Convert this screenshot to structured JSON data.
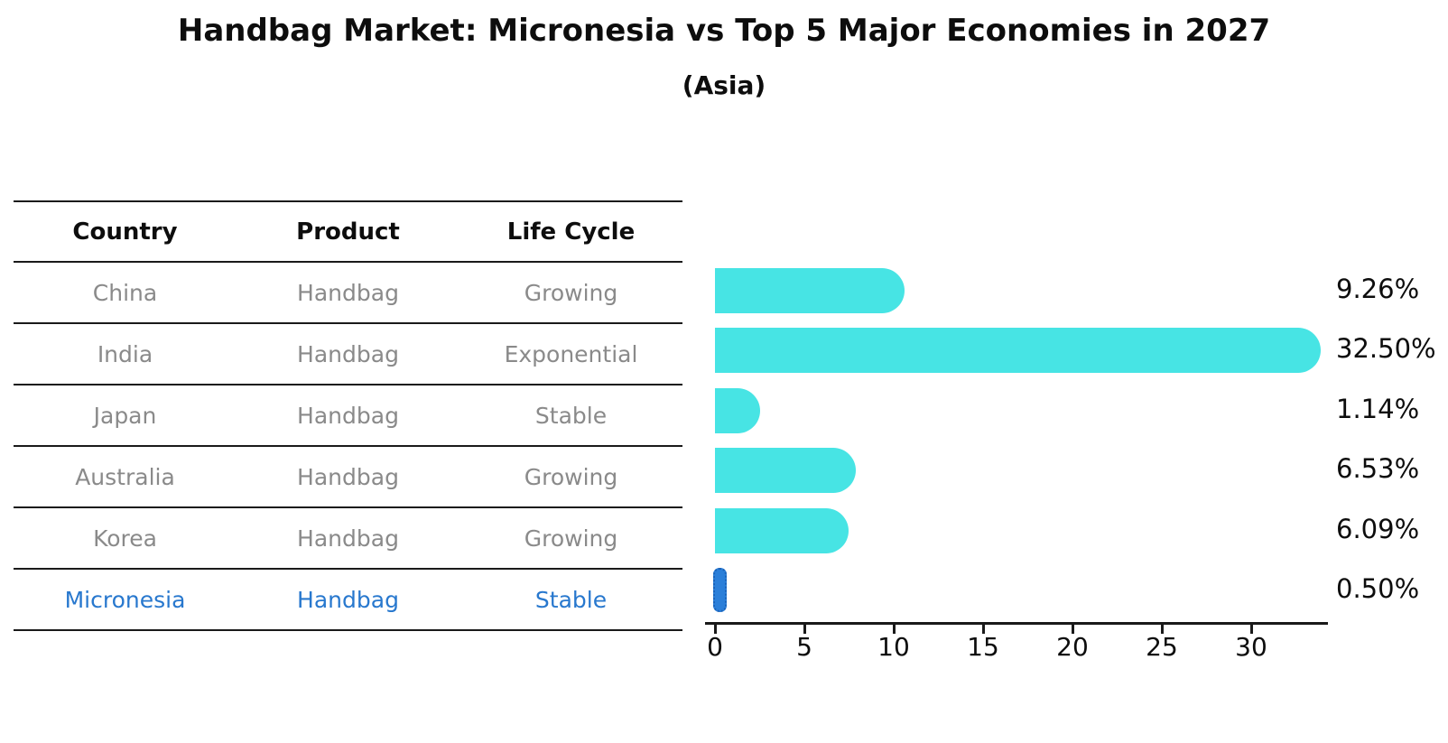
{
  "title": "Handbag Market: Micronesia vs Top 5 Major Economies in 2027",
  "subtitle": "(Asia)",
  "table": {
    "headers": [
      "Country",
      "Product",
      "Life Cycle"
    ],
    "rows": [
      {
        "country": "China",
        "product": "Handbag",
        "life_cycle": "Growing",
        "highlight": false
      },
      {
        "country": "India",
        "product": "Handbag",
        "life_cycle": "Exponential",
        "highlight": false
      },
      {
        "country": "Japan",
        "product": "Handbag",
        "life_cycle": "Stable",
        "highlight": false
      },
      {
        "country": "Australia",
        "product": "Handbag",
        "life_cycle": "Growing",
        "highlight": false
      },
      {
        "country": "Korea",
        "product": "Handbag",
        "life_cycle": "Growing",
        "highlight": false
      },
      {
        "country": "Micronesia",
        "product": "Handbag",
        "life_cycle": "Stable",
        "highlight": true
      }
    ]
  },
  "chart_data": {
    "type": "bar",
    "orientation": "horizontal",
    "title": "Handbag Market: Micronesia vs Top 5 Major Economies in 2027",
    "subtitle": "(Asia)",
    "categories": [
      "China",
      "India",
      "Japan",
      "Australia",
      "Korea",
      "Micronesia"
    ],
    "values": [
      9.26,
      32.5,
      1.14,
      6.53,
      6.09,
      0.5
    ],
    "bar_labels": [
      "9.26%",
      "32.50%",
      "1.14%",
      "6.53%",
      "6.09%",
      "0.50%"
    ],
    "highlight_category": "Micronesia",
    "x_ticks": [
      "0",
      "5",
      "10",
      "15",
      "20",
      "25",
      "30"
    ],
    "x_tick_values": [
      0,
      5,
      10,
      15,
      20,
      25,
      30
    ],
    "xlim": [
      0,
      34.2
    ],
    "xlabel": "",
    "ylabel": "",
    "grid": false,
    "legend": false
  },
  "colors": {
    "bar_fill": "#47E4E4",
    "highlight_bar_fill": "#2B7FD9",
    "highlight_text": "#2878CE",
    "row_text": "#8a8a8a",
    "line": "#1a1a1a"
  }
}
